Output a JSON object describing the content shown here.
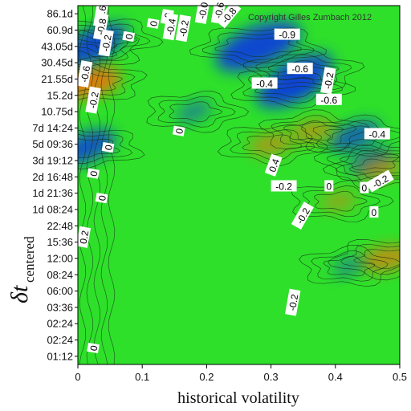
{
  "chart_data": {
    "type": "heatmap",
    "title": "",
    "copyright": "Copyright Gilles Zumbach 2012",
    "xlabel": "historical volatility",
    "ylabel_main": "δt",
    "ylabel_sub": "centered",
    "x_ticks": [
      "0",
      "0.1",
      "0.2",
      "0.3",
      "0.4",
      "0.5"
    ],
    "xlim": [
      0,
      0.5
    ],
    "y_ticks": [
      "01:12",
      "02:24",
      "02:24",
      "03:36",
      "06:00",
      "08:24",
      "12:00",
      "15:36",
      "22:48",
      "1d 08:24",
      "1d 21:36",
      "2d 16:48",
      "3d 19:12",
      "5d 09:36",
      "7d 14:24",
      "10.75d",
      "15.2d",
      "21.55d",
      "30.45d",
      "43.05d",
      "60.9d",
      "86.1d"
    ],
    "colorscale": {
      "negative": "#1040d8",
      "zero": "#2ee02a",
      "positive": "#e07a10"
    },
    "features": [
      {
        "x": 0.28,
        "y": 19.0,
        "value": -0.8
      },
      {
        "x": 0.33,
        "y": 16.5,
        "value": -0.6
      },
      {
        "x": 0.43,
        "y": 13.5,
        "value": -0.4
      },
      {
        "x": 0.35,
        "y": 17.5,
        "value": -0.5
      },
      {
        "x": 0.455,
        "y": 12.0,
        "value": -0.3
      },
      {
        "x": 0.47,
        "y": 11.5,
        "value": 0.3
      },
      {
        "x": 0.48,
        "y": 6.0,
        "value": 0.4
      },
      {
        "x": 0.3,
        "y": 13.0,
        "value": 0.3
      },
      {
        "x": 0.405,
        "y": 9.5,
        "value": 0.2
      },
      {
        "x": 0.365,
        "y": 13.8,
        "value": 0.3
      },
      {
        "x": 0.012,
        "y": 16.8,
        "value": 0.6
      },
      {
        "x": 0.012,
        "y": 18.8,
        "value": -0.5
      },
      {
        "x": 0.012,
        "y": 12.8,
        "value": -0.5
      },
      {
        "x": 0.04,
        "y": 19.5,
        "value": -0.4
      },
      {
        "x": 0.18,
        "y": 15.0,
        "value": -0.2
      },
      {
        "x": 0.42,
        "y": 5.5,
        "value": -0.15
      }
    ],
    "contour_labels": [
      {
        "text": "-0.6",
        "x": 0.037,
        "y": 21.0,
        "angle": -80
      },
      {
        "text": "-0.8",
        "x": 0.037,
        "y": 20.2,
        "angle": -80
      },
      {
        "text": "-0.2",
        "x": 0.045,
        "y": 19.2,
        "angle": -80
      },
      {
        "text": "-0.6",
        "x": 0.012,
        "y": 17.3,
        "angle": -80
      },
      {
        "text": "-0.2",
        "x": 0.025,
        "y": 15.7,
        "angle": -80
      },
      {
        "text": "0",
        "x": 0.08,
        "y": 19.6,
        "angle": -80
      },
      {
        "text": "0",
        "x": 0.048,
        "y": 12.8,
        "angle": -80
      },
      {
        "text": "0",
        "x": 0.025,
        "y": 11.2,
        "angle": -80
      },
      {
        "text": "0",
        "x": 0.038,
        "y": 9.7,
        "angle": -80
      },
      {
        "text": "0.2",
        "x": 0.01,
        "y": 7.3,
        "angle": -80
      },
      {
        "text": "0",
        "x": 0.025,
        "y": 0.5,
        "angle": -80
      },
      {
        "text": "0",
        "x": 0.118,
        "y": 20.4,
        "angle": -80
      },
      {
        "text": "-0",
        "x": 0.14,
        "y": 20.8,
        "angle": -80
      },
      {
        "text": "-0.4",
        "x": 0.145,
        "y": 20.2,
        "angle": -80
      },
      {
        "text": "-0.2",
        "x": 0.165,
        "y": 20.1,
        "angle": -80
      },
      {
        "text": "0",
        "x": 0.158,
        "y": 13.8,
        "angle": -80
      },
      {
        "text": "-0.0",
        "x": 0.195,
        "y": 21.2,
        "angle": -80
      },
      {
        "text": "-0.6",
        "x": 0.22,
        "y": 21.2,
        "angle": -80
      },
      {
        "text": "-0.8",
        "x": 0.235,
        "y": 20.9,
        "angle": -50
      },
      {
        "text": "-0.9",
        "x": 0.325,
        "y": 19.7,
        "angle": 0
      },
      {
        "text": "-0.6",
        "x": 0.345,
        "y": 17.6,
        "angle": 0
      },
      {
        "text": "-0.4",
        "x": 0.29,
        "y": 16.7,
        "angle": 0
      },
      {
        "text": "-0.2",
        "x": 0.39,
        "y": 16.9,
        "angle": -80
      },
      {
        "text": "-0.6",
        "x": 0.39,
        "y": 15.7,
        "angle": 0
      },
      {
        "text": "-0.4",
        "x": 0.465,
        "y": 13.6,
        "angle": 0
      },
      {
        "text": "0.4",
        "x": 0.305,
        "y": 11.7,
        "angle": -70
      },
      {
        "text": "-0.2",
        "x": 0.32,
        "y": 10.4,
        "angle": 0
      },
      {
        "text": "0",
        "x": 0.39,
        "y": 10.4,
        "angle": 0
      },
      {
        "text": "0",
        "x": 0.445,
        "y": 10.3,
        "angle": 0
      },
      {
        "text": "-0.2",
        "x": 0.47,
        "y": 10.7,
        "angle": -30
      },
      {
        "text": "0",
        "x": 0.46,
        "y": 8.8,
        "angle": 0
      },
      {
        "text": "-0.2",
        "x": 0.35,
        "y": 8.6,
        "angle": -60
      },
      {
        "text": "-0.2",
        "x": 0.335,
        "y": 3.3,
        "angle": -80
      }
    ]
  }
}
